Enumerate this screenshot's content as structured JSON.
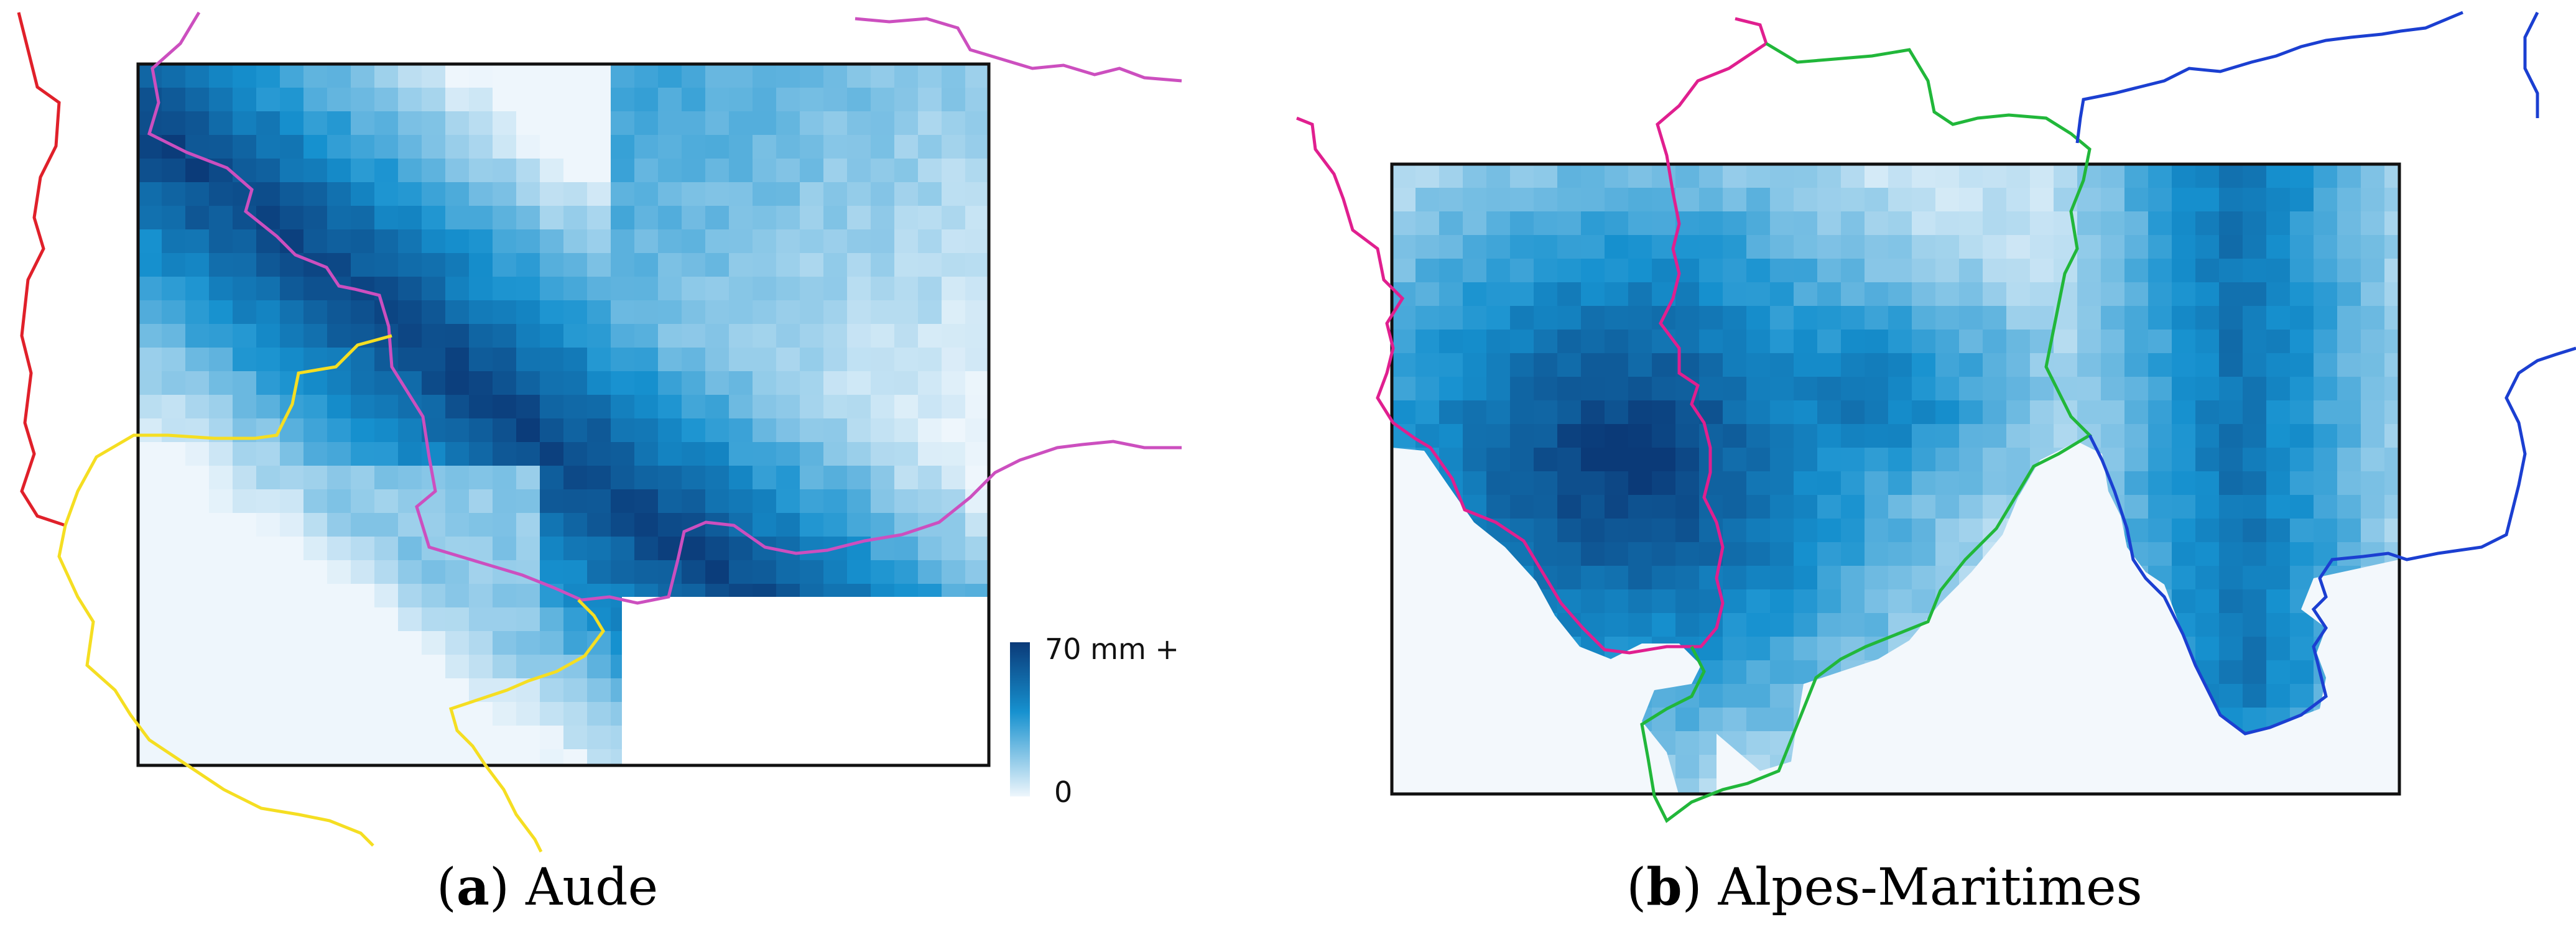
{
  "panels": [
    {
      "id": "a",
      "caption_letter": "a",
      "caption_text": "Aude",
      "border_colors": {
        "red": "#e0202a",
        "magenta": "#cc4fbf",
        "yellow": "#f5de22"
      }
    },
    {
      "id": "b",
      "caption_letter": "b",
      "caption_text": "Alpes-Maritimes",
      "border_colors": {
        "magenta": "#e01f8f",
        "green": "#21b73a",
        "blue": "#1b3fd1"
      }
    }
  ],
  "legend": {
    "max_label": "70 mm +",
    "min_label": "0",
    "unit": "mm",
    "max_value": 70,
    "min_value": 0,
    "color_high": "#0b3a78",
    "color_mid": "#1691cf",
    "color_low": "#eef6fc"
  }
}
